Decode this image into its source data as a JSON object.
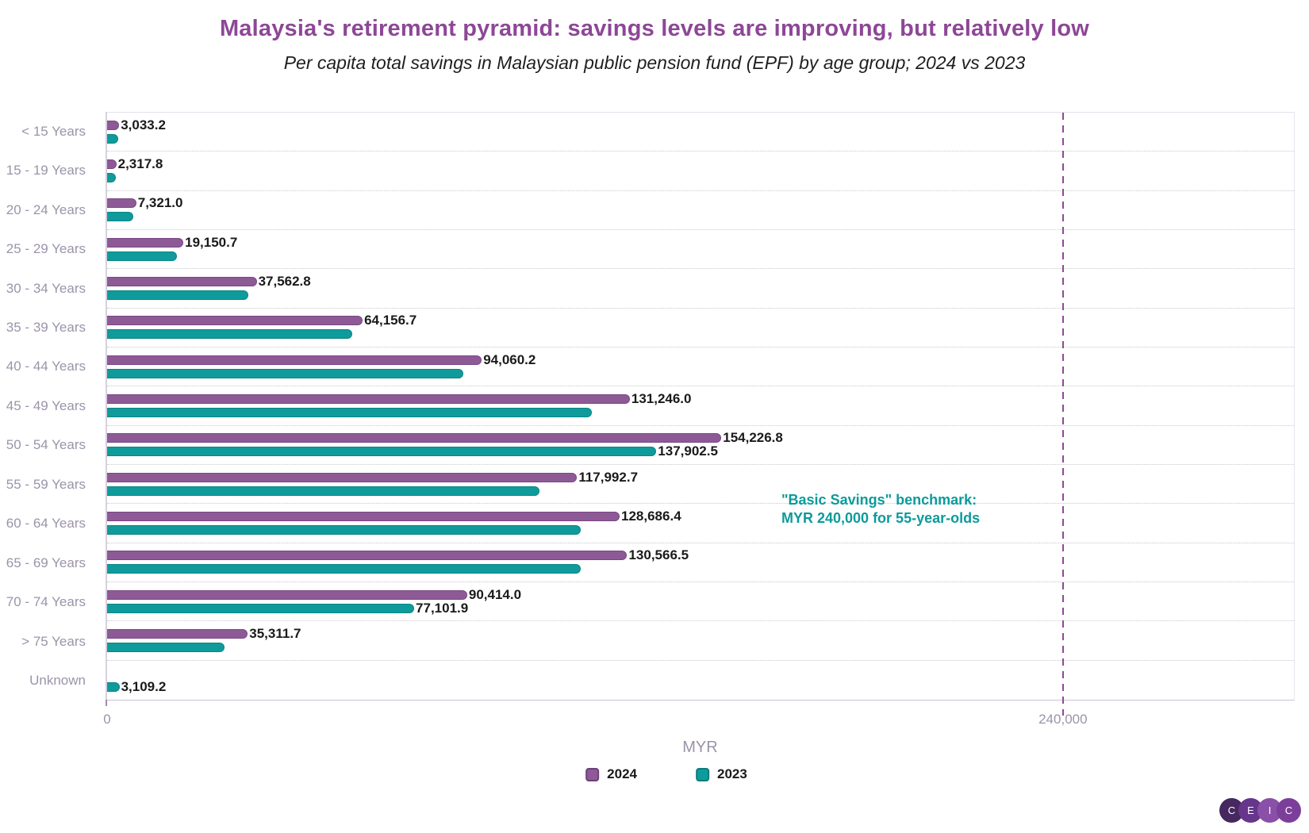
{
  "title": "Malaysia's retirement pyramid: savings levels are improving, but relatively low",
  "subtitle": "Per capita total savings in Malaysian public pension fund (EPF) by age group; 2024 vs 2023",
  "colors": {
    "title": "#8d4796",
    "subtitle": "#1f1f1f",
    "axis_text": "#9b94a9",
    "data_label": "#1a1a1a",
    "gridline": "#c9c9c9",
    "benchmark_line": "#8d4a96",
    "annotation_text": "#0d9a9a",
    "zero_tick": "#a489b4",
    "series_2024": "#8d5a96",
    "series_2024_border": "#7a4886",
    "series_2023": "#0f9b9b",
    "series_2023_border": "#0b8484"
  },
  "axis": {
    "title": "MYR",
    "ticks": [
      "0",
      "240,000"
    ]
  },
  "benchmark": {
    "value": 240000,
    "label_lines": [
      "\"Basic Savings\" benchmark:",
      "MYR 240,000 for 55-year-olds"
    ]
  },
  "legend": [
    {
      "label": "2024",
      "color": "#8d5a96",
      "border_color": "#6e3f7a"
    },
    {
      "label": "2023",
      "color": "#0f9b9b",
      "border_color": "#0a7d7d"
    }
  ],
  "logo": {
    "letters": [
      "C",
      "E",
      "I",
      "C"
    ],
    "circle_colors": [
      "#46285f",
      "#66368a",
      "#8a50a8",
      "#7c3f99"
    ]
  },
  "chart_data": {
    "type": "bar",
    "orientation": "horizontal",
    "title": "Malaysia's retirement pyramid: savings levels are improving, but relatively low",
    "subtitle": "Per capita total savings in Malaysian public pension fund (EPF) by age group; 2024 vs 2023",
    "xlabel": "MYR",
    "x_ticks": [
      0,
      240000
    ],
    "x_max": 298000,
    "benchmark_value": 240000,
    "benchmark_label": "\"Basic Savings\" benchmark: MYR 240,000 for 55-year-olds",
    "grid": "dotted horizontal separators between categories",
    "legend_position": "bottom",
    "categories": [
      "< 15 Years",
      "15 - 19 Years",
      "20 - 24 Years",
      "25 - 29 Years",
      "30 - 34 Years",
      "35 - 39 Years",
      "40 - 44 Years",
      "45 - 49 Years",
      "50 - 54 Years",
      "55 - 59 Years",
      "60 - 64 Years",
      "65 - 69 Years",
      "70 - 74 Years",
      "> 75 Years",
      "Unknown"
    ],
    "series": [
      {
        "name": "2024",
        "color": "#8d5a96",
        "border_color": "#7a4886",
        "values": [
          3033.2,
          2317.8,
          7321.0,
          19150.7,
          37562.8,
          64156.7,
          94060.2,
          131246.0,
          154226.8,
          117992.7,
          128686.4,
          130566.5,
          90414.0,
          35311.7,
          null
        ],
        "labels": [
          "3,033.2",
          "2,317.8",
          "7,321.0",
          "19,150.7",
          "37,562.8",
          "64,156.7",
          "94,060.2",
          "131,246.0",
          "154,226.8",
          "117,992.7",
          "128,686.4",
          "130,566.5",
          "90,414.0",
          "35,311.7",
          null
        ]
      },
      {
        "name": "2023",
        "color": "#0f9b9b",
        "border_color": "#0b8484",
        "values": [
          2700,
          2150,
          6600,
          17500,
          35500,
          61600,
          89400,
          121800,
          137902.5,
          108600,
          119000,
          119000,
          77101.9,
          29500,
          3109.2
        ],
        "labels": [
          null,
          null,
          null,
          null,
          null,
          null,
          null,
          null,
          "137,902.5",
          null,
          null,
          null,
          "77,101.9",
          null,
          "3,109.2"
        ]
      }
    ]
  }
}
